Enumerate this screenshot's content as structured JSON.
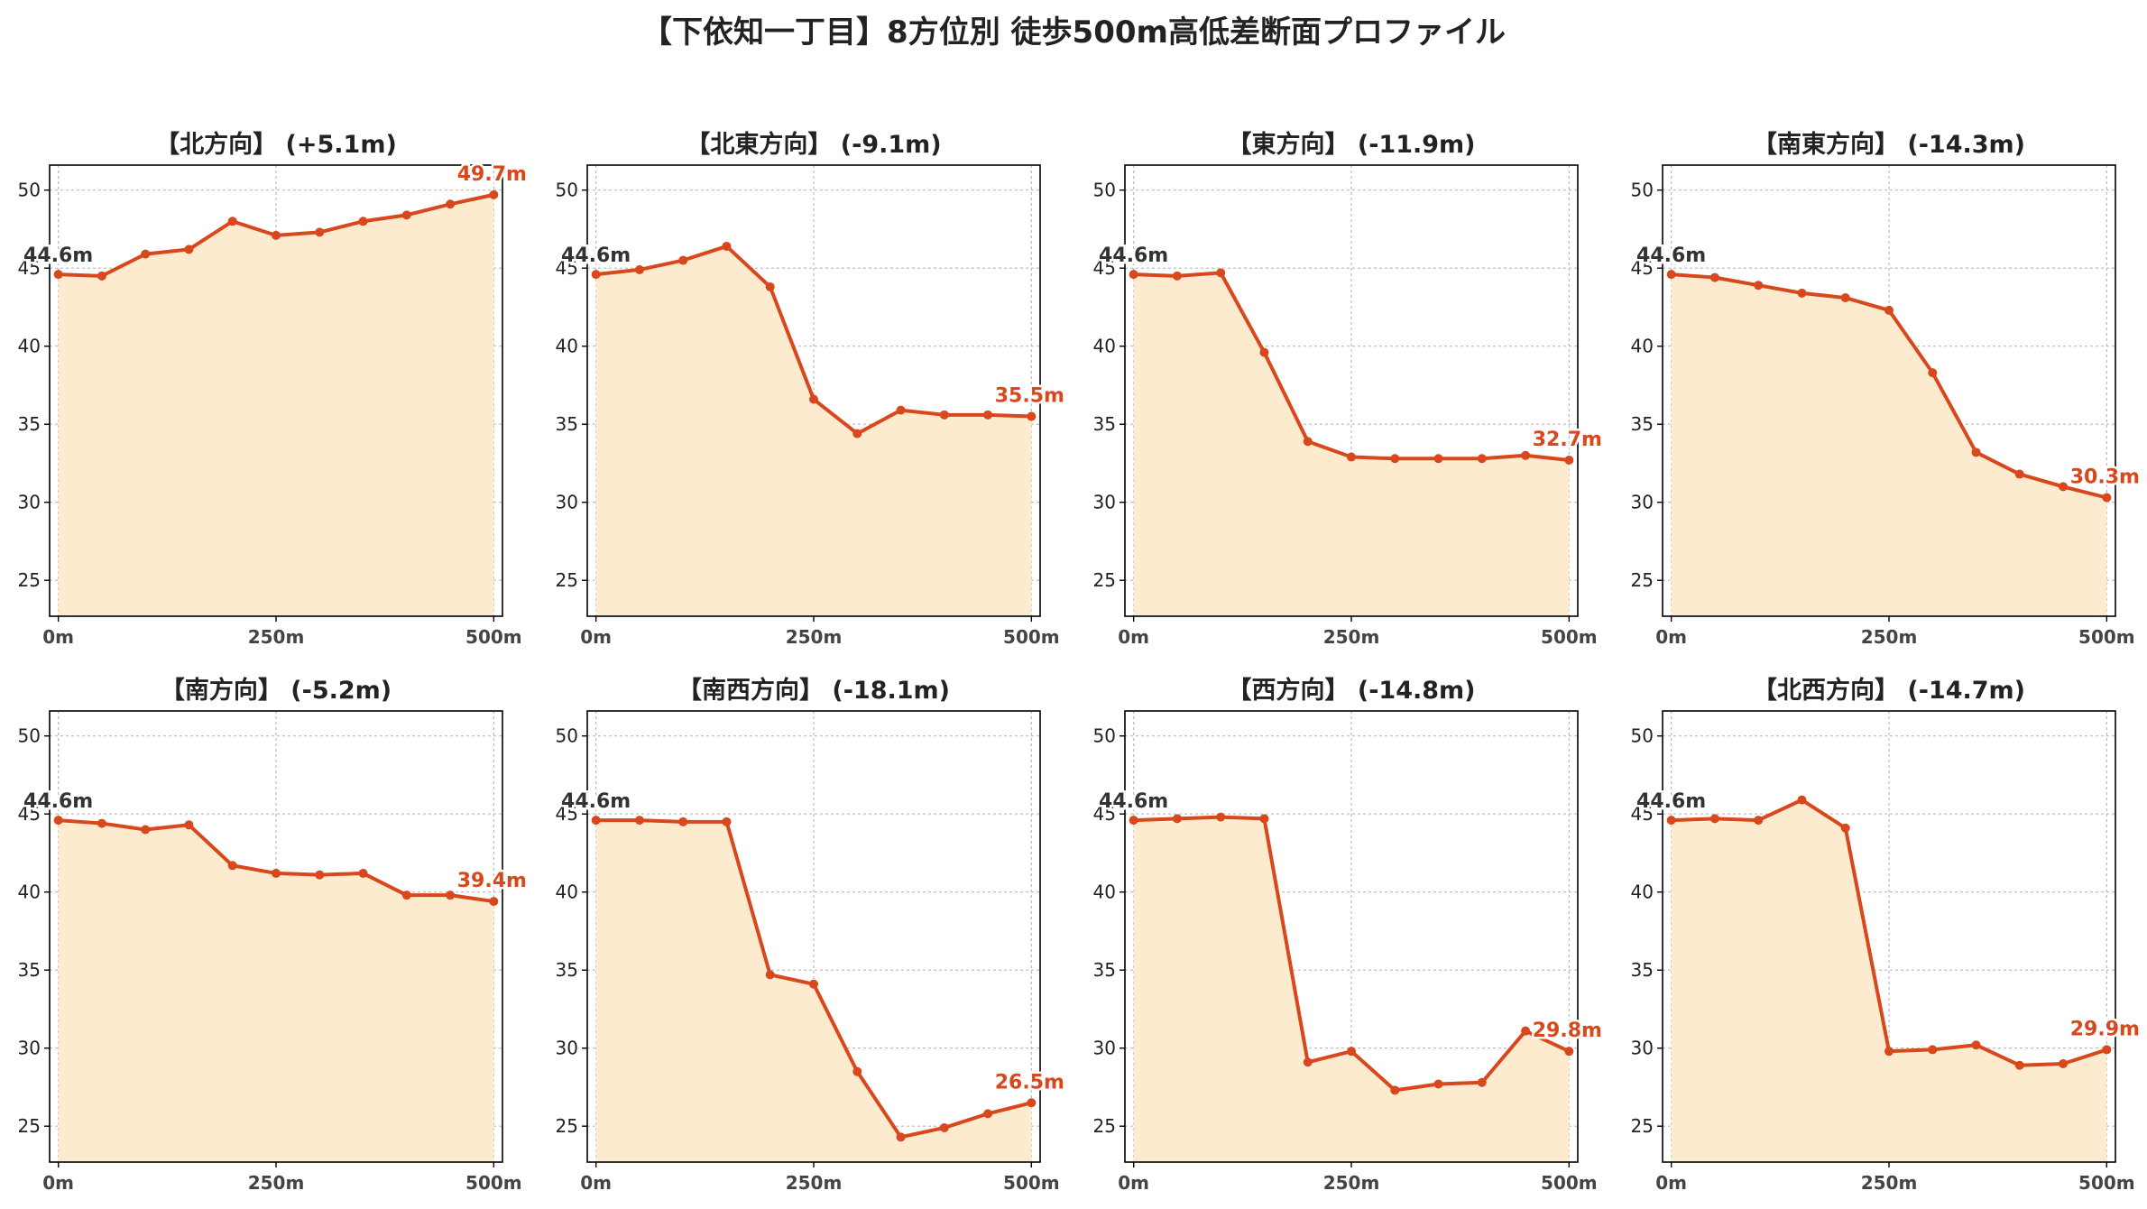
{
  "title": "【下依知一丁目】8方位別 徒歩500m高低差断面プロファイル",
  "colors": {
    "line": "#d9471c",
    "fill": "#fdebd0",
    "start_label": "#333333",
    "end_label": "#d9471c",
    "grid": "#bbbbbb"
  },
  "chart_data": [
    {
      "type": "area",
      "title": "【北方向】 (+5.1m)",
      "start_label": "44.6m",
      "end_label": "49.7m",
      "x": [
        0,
        50,
        100,
        150,
        200,
        250,
        300,
        350,
        400,
        450,
        500
      ],
      "y": [
        44.6,
        44.5,
        45.9,
        46.2,
        48.0,
        47.1,
        47.3,
        48.0,
        48.4,
        49.1,
        49.7
      ]
    },
    {
      "type": "area",
      "title": "【北東方向】 (-9.1m)",
      "start_label": "44.6m",
      "end_label": "35.5m",
      "x": [
        0,
        50,
        100,
        150,
        200,
        250,
        300,
        350,
        400,
        450,
        500
      ],
      "y": [
        44.6,
        44.9,
        45.5,
        46.4,
        43.8,
        36.6,
        34.4,
        35.9,
        35.6,
        35.6,
        35.5
      ]
    },
    {
      "type": "area",
      "title": "【東方向】 (-11.9m)",
      "start_label": "44.6m",
      "end_label": "32.7m",
      "x": [
        0,
        50,
        100,
        150,
        200,
        250,
        300,
        350,
        400,
        450,
        500
      ],
      "y": [
        44.6,
        44.5,
        44.7,
        39.6,
        33.9,
        32.9,
        32.8,
        32.8,
        32.8,
        33.0,
        32.7
      ]
    },
    {
      "type": "area",
      "title": "【南東方向】 (-14.3m)",
      "start_label": "44.6m",
      "end_label": "30.3m",
      "x": [
        0,
        50,
        100,
        150,
        200,
        250,
        300,
        350,
        400,
        450,
        500
      ],
      "y": [
        44.6,
        44.4,
        43.9,
        43.4,
        43.1,
        42.3,
        38.3,
        33.2,
        31.8,
        31.0,
        30.3
      ]
    },
    {
      "type": "area",
      "title": "【南方向】 (-5.2m)",
      "start_label": "44.6m",
      "end_label": "39.4m",
      "x": [
        0,
        50,
        100,
        150,
        200,
        250,
        300,
        350,
        400,
        450,
        500
      ],
      "y": [
        44.6,
        44.4,
        44.0,
        44.3,
        41.7,
        41.2,
        41.1,
        41.2,
        39.8,
        39.8,
        39.4
      ]
    },
    {
      "type": "area",
      "title": "【南西方向】 (-18.1m)",
      "start_label": "44.6m",
      "end_label": "26.5m",
      "x": [
        0,
        50,
        100,
        150,
        200,
        250,
        300,
        350,
        400,
        450,
        500
      ],
      "y": [
        44.6,
        44.6,
        44.5,
        44.5,
        34.7,
        34.1,
        28.5,
        24.3,
        24.9,
        25.8,
        26.5
      ]
    },
    {
      "type": "area",
      "title": "【西方向】 (-14.8m)",
      "start_label": "44.6m",
      "end_label": "29.8m",
      "x": [
        0,
        50,
        100,
        150,
        200,
        250,
        300,
        350,
        400,
        450,
        500
      ],
      "y": [
        44.6,
        44.7,
        44.8,
        44.7,
        29.1,
        29.8,
        27.3,
        27.7,
        27.8,
        31.1,
        29.8
      ]
    },
    {
      "type": "area",
      "title": "【北西方向】 (-14.7m)",
      "start_label": "44.6m",
      "end_label": "29.9m",
      "x": [
        0,
        50,
        100,
        150,
        200,
        250,
        300,
        350,
        400,
        450,
        500
      ],
      "y": [
        44.6,
        44.7,
        44.6,
        45.9,
        44.1,
        29.8,
        29.9,
        30.2,
        28.9,
        29.0,
        29.9
      ]
    }
  ],
  "axes": {
    "ylim": [
      22.7,
      51.6
    ],
    "xlim": [
      -10,
      510
    ],
    "yticks": [
      25,
      30,
      35,
      40,
      45,
      50
    ],
    "xticks": [
      0,
      250,
      500
    ],
    "xtick_labels": [
      "0m",
      "250m",
      "500m"
    ]
  }
}
